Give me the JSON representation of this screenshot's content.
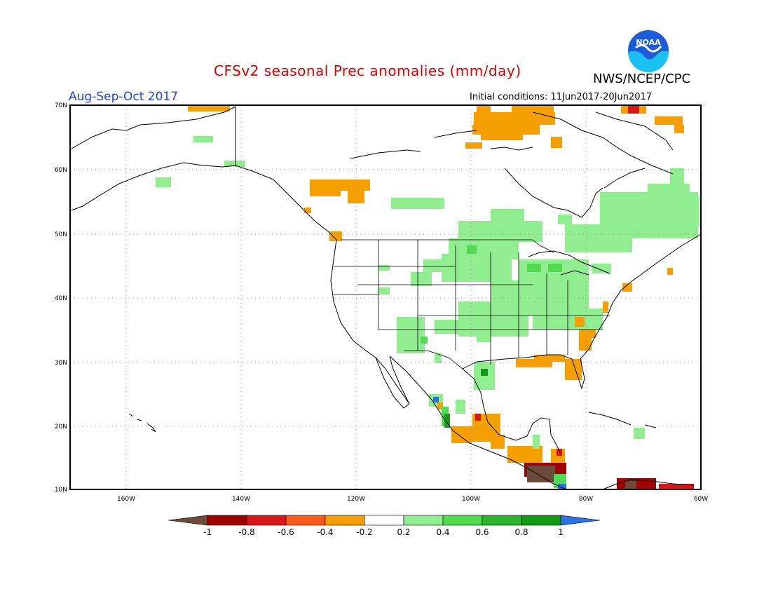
{
  "header": {
    "title": "CFSv2 seasonal Prec anomalies (mm/day)",
    "agency": "NWS/NCEP/CPC",
    "season": "Aug-Sep-Oct 2017",
    "initial_conditions": "Initial conditions: 11Jun2017-20Jun2017",
    "logo_text": "NOAA"
  },
  "map": {
    "lat_labels": [
      "70N",
      "60N",
      "50N",
      "40N",
      "30N",
      "20N",
      "10N"
    ],
    "lon_labels": [
      "160W",
      "140W",
      "120W",
      "100W",
      "80W",
      "60W"
    ],
    "grid": "dotted"
  },
  "colorbar": {
    "labels": [
      "-1",
      "-0.8",
      "-0.6",
      "-0.4",
      "-0.2",
      "0.2",
      "0.4",
      "0.6",
      "0.8",
      "1"
    ],
    "colors": [
      "#6b4a3a",
      "#a00000",
      "#d81818",
      "#ff5a1a",
      "#f5a000",
      "#ffffff",
      "#90ee90",
      "#50dc50",
      "#2cb42c",
      "#129a12",
      "#2a72e0"
    ]
  },
  "colors": {
    "orange": "#f5a000",
    "light_green": "#90ee90",
    "green": "#50dc50",
    "dark_green": "#129a12",
    "dark_red": "#a00000",
    "brown": "#6b4a3a",
    "blue": "#2a72e0"
  }
}
